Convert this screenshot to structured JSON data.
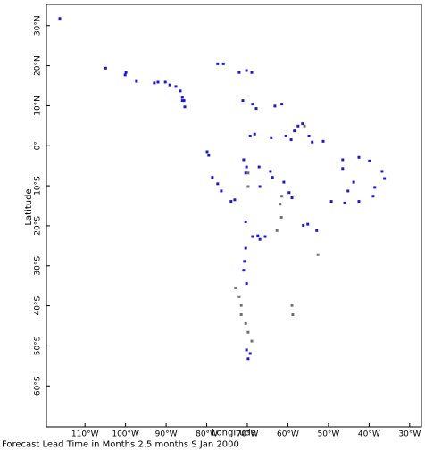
{
  "chart_data": {
    "type": "scatter",
    "xlabel": "Longitude",
    "ylabel": "Latitude",
    "footer": "Forecast Lead Time in Months 2.5 months S Jan 2000",
    "xlim": [
      -119.5,
      -27.1
    ],
    "ylim": [
      -70.2,
      35.3
    ],
    "xticks": [
      {
        "value": -110,
        "label": "110°W"
      },
      {
        "value": -100,
        "label": "100°W"
      },
      {
        "value": -90,
        "label": "90°W"
      },
      {
        "value": -80,
        "label": "80°W"
      },
      {
        "value": -70,
        "label": "70°W"
      },
      {
        "value": -60,
        "label": "60°W"
      },
      {
        "value": -50,
        "label": "50°W"
      },
      {
        "value": -40,
        "label": "40°W"
      },
      {
        "value": -30,
        "label": "30°W"
      }
    ],
    "yticks": [
      {
        "value": 30,
        "label": "30°N"
      },
      {
        "value": 20,
        "label": "20°N"
      },
      {
        "value": 10,
        "label": "10°N"
      },
      {
        "value": 0,
        "label": "0°"
      },
      {
        "value": -10,
        "label": "10°S"
      },
      {
        "value": -20,
        "label": "20°S"
      },
      {
        "value": -30,
        "label": "30°S"
      },
      {
        "value": -40,
        "label": "40°S"
      },
      {
        "value": -50,
        "label": "50°S"
      },
      {
        "value": -60,
        "label": "60°S"
      }
    ],
    "series": [
      {
        "color": "#1a1acc",
        "x": [
          -116.2,
          -104.9,
          -99.9,
          -100.1,
          -97.3,
          -92.9,
          -92.0,
          -90.2,
          -89.1,
          -87.6,
          -86.5,
          -86.0,
          -85.6,
          -86.0,
          -85.4,
          -77.3,
          -75.9,
          -72.0,
          -70.2,
          -68.9,
          -71.1,
          -68.7,
          -67.8,
          -63.2,
          -61.5,
          -69.3,
          -68.2,
          -64.1,
          -60.5,
          -59.2,
          -58.4,
          -57.5,
          -56.4,
          -54.8,
          -54.0,
          -51.3,
          -79.9,
          -79.5,
          -78.6,
          -77.3,
          -76.4,
          -74.0,
          -73.1,
          -70.9,
          -70.2,
          -70.4,
          -67.1,
          -66.9,
          -64.3,
          -63.8,
          -61.0,
          -59.7,
          -59.0,
          -56.2,
          -55.1,
          -52.9,
          -46.5,
          -46.5,
          -42.5,
          -39.9,
          -36.8,
          -36.2,
          -38.6,
          -39.0,
          -43.8,
          -45.2,
          -49.3,
          -46.0,
          -42.5,
          -70.4,
          -68.7,
          -67.4,
          -66.9,
          -65.6,
          -70.4,
          -70.7,
          -70.9,
          -70.2,
          -70.2,
          -69.8,
          -69.3
        ],
        "y": [
          31.8,
          19.4,
          18.3,
          17.7,
          16.1,
          15.7,
          15.9,
          15.9,
          15.2,
          14.8,
          13.7,
          12.1,
          11.3,
          11.3,
          9.7,
          20.5,
          20.5,
          18.3,
          18.8,
          18.3,
          11.3,
          10.4,
          9.3,
          9.9,
          10.4,
          2.4,
          2.9,
          2.0,
          2.4,
          1.5,
          3.7,
          4.9,
          5.5,
          2.4,
          0.9,
          1.1,
          -1.5,
          -2.4,
          -7.9,
          -9.5,
          -11.3,
          -13.9,
          -13.5,
          -3.5,
          -5.3,
          -6.8,
          -5.3,
          -10.2,
          -6.4,
          -7.9,
          -9.1,
          -11.7,
          -13.0,
          -19.9,
          -19.6,
          -21.2,
          -3.5,
          -5.7,
          -2.9,
          -3.8,
          -6.4,
          -8.2,
          -10.4,
          -12.6,
          -9.1,
          -11.3,
          -13.9,
          -14.3,
          -13.9,
          -19.0,
          -22.7,
          -22.5,
          -23.4,
          -22.7,
          -25.6,
          -28.9,
          -31.1,
          -34.4,
          -51.0,
          -53.2,
          -51.9
        ]
      },
      {
        "color": "#707070",
        "x": [
          -72.9,
          -72.0,
          -71.5,
          -71.5,
          -70.4,
          -69.8,
          -68.9,
          -59.0,
          -58.8,
          -61.5,
          -61.9,
          -61.6,
          -62.7,
          -69.8,
          -69.8,
          -55.9,
          -52.6
        ],
        "y": [
          -35.5,
          -37.7,
          -39.9,
          -42.2,
          -44.4,
          -46.6,
          -48.8,
          -39.9,
          -42.2,
          -12.6,
          -14.6,
          -17.9,
          -21.2,
          -10.2,
          -6.8,
          4.9,
          -27.2
        ]
      }
    ]
  }
}
